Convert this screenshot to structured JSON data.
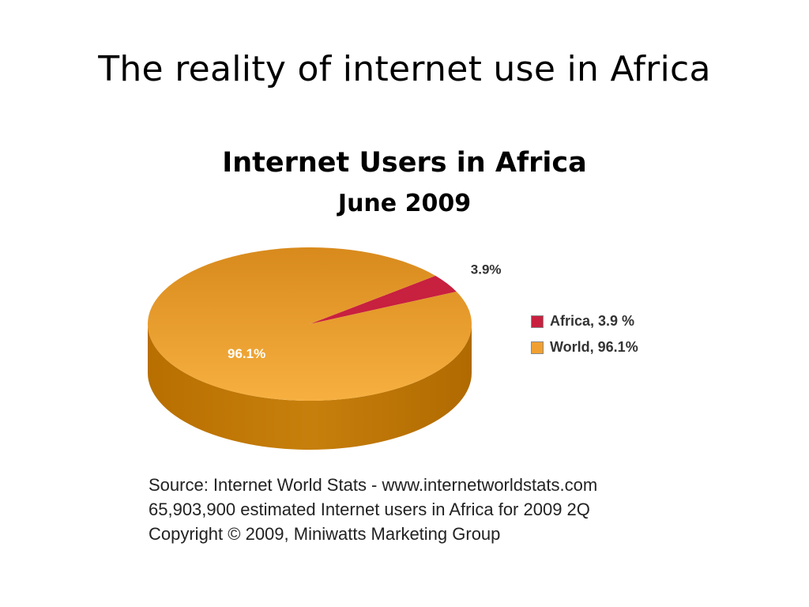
{
  "slide": {
    "title": "The reality of internet use in Africa"
  },
  "chart_data": {
    "type": "pie",
    "title": "Internet Users in Africa",
    "subtitle": "June 2009",
    "slices": [
      {
        "name": "Africa",
        "value": 3.9,
        "label": "3.9%",
        "legend": "Africa, 3.9 %",
        "color": "#c8203f"
      },
      {
        "name": "World",
        "value": 96.1,
        "label": "96.1%",
        "legend": "World, 96.1%",
        "color": "#f0a030"
      }
    ],
    "legend_position": "right",
    "style": "3d"
  },
  "source": {
    "line1": "Source: Internet World Stats - www.internetworldstats.com",
    "line2": "65,903,900 estimated Internet users in Africa for 2009 2Q",
    "line3": "Copyright © 2009, Miniwatts Marketing Group"
  }
}
